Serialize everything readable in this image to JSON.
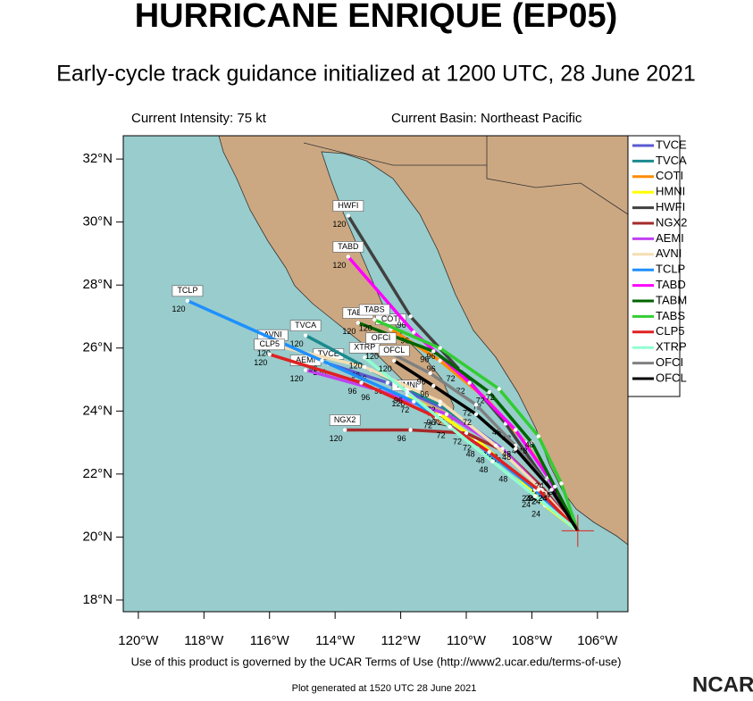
{
  "chart_data": {
    "type": "track",
    "title": "HURRICANE ENRIQUE (EP05)",
    "subtitle": "Early-cycle track guidance initialized at 1200 UTC, 28 June 2021",
    "intensity": "Current Intensity: 75 kt",
    "basin": "Current Basin: Northeast Pacific",
    "footer": "Use of this product is governed by the UCAR Terms of Use (http://www2.ucar.edu/terms-of-use)",
    "generated": "Plot generated at 1520 UTC  28 June 2021",
    "logo": "NCAR",
    "xlim": [
      -120.46,
      -105.07
    ],
    "ylim": [
      17.63,
      32.74
    ],
    "xticks": [
      {
        "value": -120,
        "label": "120°W"
      },
      {
        "value": -118,
        "label": "118°W"
      },
      {
        "value": -116,
        "label": "116°W"
      },
      {
        "value": -114,
        "label": "114°W"
      },
      {
        "value": -112,
        "label": "112°W"
      },
      {
        "value": -110,
        "label": "110°W"
      },
      {
        "value": -108,
        "label": "108°W"
      },
      {
        "value": -106,
        "label": "106°W"
      }
    ],
    "yticks": [
      {
        "value": 18,
        "label": "18°N"
      },
      {
        "value": 20,
        "label": "20°N"
      },
      {
        "value": 22,
        "label": "22°N"
      },
      {
        "value": 24,
        "label": "24°N"
      },
      {
        "value": 26,
        "label": "26°N"
      },
      {
        "value": 28,
        "label": "28°N"
      },
      {
        "value": 30,
        "label": "30°N"
      },
      {
        "value": 32,
        "label": "32°N"
      }
    ],
    "hour_labels": [
      24,
      48,
      72,
      96,
      120
    ],
    "series": [
      {
        "name": "TVCE",
        "color": "#5a5ad2",
        "lon": [
          -106.6,
          -107.6,
          -108.9,
          -110.5,
          -112.4,
          -114.2
        ],
        "lat": [
          20.2,
          21.4,
          22.8,
          24.0,
          24.9,
          25.5
        ]
      },
      {
        "name": "TVCA",
        "color": "#1b8a8f",
        "lon": [
          -106.6,
          -107.7,
          -109.1,
          -110.8,
          -112.9,
          -114.9
        ],
        "lat": [
          20.2,
          21.5,
          22.9,
          24.2,
          25.3,
          26.4
        ]
      },
      {
        "name": "COTI",
        "color": "#ff8c00",
        "lon": [
          -106.6,
          -107.3,
          -108.2,
          -109.4,
          -110.8,
          -112.3
        ],
        "lat": [
          20.2,
          21.6,
          23.0,
          24.4,
          25.6,
          26.6
        ]
      },
      {
        "name": "HMNI",
        "color": "#ffff00",
        "lon": [
          -106.6,
          -107.6,
          -108.6,
          -109.7,
          -110.8,
          -111.8
        ],
        "lat": [
          20.2,
          21.0,
          22.1,
          23.1,
          23.9,
          24.5
        ]
      },
      {
        "name": "HWFI",
        "color": "#404040",
        "lon": [
          -106.6,
          -107.6,
          -108.8,
          -110.2,
          -111.7,
          -113.6
        ],
        "lat": [
          20.2,
          21.8,
          23.6,
          25.3,
          27.0,
          30.2
        ]
      },
      {
        "name": "NGX2",
        "color": "#a52a2a",
        "lon": [
          -106.6,
          -107.7,
          -108.8,
          -110.0,
          -111.7,
          -113.7
        ],
        "lat": [
          20.2,
          21.6,
          22.7,
          23.3,
          23.4,
          23.4
        ]
      },
      {
        "name": "AEMI",
        "color": "#c040f0",
        "lon": [
          -106.6,
          -107.6,
          -108.9,
          -110.6,
          -112.8,
          -114.9
        ],
        "lat": [
          20.2,
          21.4,
          22.8,
          23.9,
          24.7,
          25.3
        ]
      },
      {
        "name": "AVNI",
        "color": "#f5deb3",
        "lon": [
          -106.6,
          -107.7,
          -109.1,
          -110.8,
          -113.1,
          -115.9
        ],
        "lat": [
          20.2,
          21.5,
          22.9,
          24.3,
          25.4,
          26.1
        ]
      },
      {
        "name": "TCLP",
        "color": "#1e90ff",
        "lon": [
          -106.6,
          -107.9,
          -109.6,
          -111.6,
          -114.4,
          -118.5
        ],
        "lat": [
          20.2,
          21.5,
          22.9,
          24.3,
          25.6,
          27.5
        ]
      },
      {
        "name": "TABD",
        "color": "#ff00ff",
        "lon": [
          -106.6,
          -107.5,
          -108.5,
          -109.9,
          -111.6,
          -113.6
        ],
        "lat": [
          20.2,
          21.9,
          23.4,
          24.9,
          26.5,
          28.9
        ]
      },
      {
        "name": "TABM",
        "color": "#006400",
        "lon": [
          -106.6,
          -107.3,
          -108.0,
          -109.3,
          -111.0,
          -113.3
        ],
        "lat": [
          20.2,
          21.6,
          23.0,
          24.6,
          25.9,
          26.8
        ]
      },
      {
        "name": "TABS",
        "color": "#32cd32",
        "lon": [
          -106.6,
          -107.1,
          -107.8,
          -109.0,
          -110.8,
          -112.8
        ],
        "lat": [
          20.2,
          21.7,
          23.2,
          24.7,
          26.0,
          26.9
        ]
      },
      {
        "name": "CLP5",
        "color": "#e02020",
        "lon": [
          -106.6,
          -107.8,
          -109.3,
          -110.9,
          -113.2,
          -116.0
        ],
        "lat": [
          20.2,
          21.5,
          22.7,
          23.8,
          24.9,
          25.8
        ]
      },
      {
        "name": "XTRP",
        "color": "#90ffd0",
        "lon": [
          -106.6,
          -107.9,
          -109.2,
          -110.5,
          -111.8,
          -113.1
        ],
        "lat": [
          20.2,
          21.3,
          22.4,
          23.5,
          24.6,
          25.7
        ]
      },
      {
        "name": "OFCI",
        "color": "#808080",
        "lon": [
          -106.6,
          -107.4,
          -108.5,
          -109.7,
          -111.1,
          -112.6
        ],
        "lat": [
          20.2,
          21.5,
          22.9,
          24.2,
          25.2,
          26.0
        ]
      },
      {
        "name": "OFCL",
        "color": "#000000",
        "lon": [
          -106.6,
          -107.4,
          -108.5,
          -109.7,
          -111.0,
          -112.2
        ],
        "lat": [
          20.2,
          21.5,
          22.8,
          23.9,
          24.8,
          25.6
        ]
      }
    ]
  }
}
